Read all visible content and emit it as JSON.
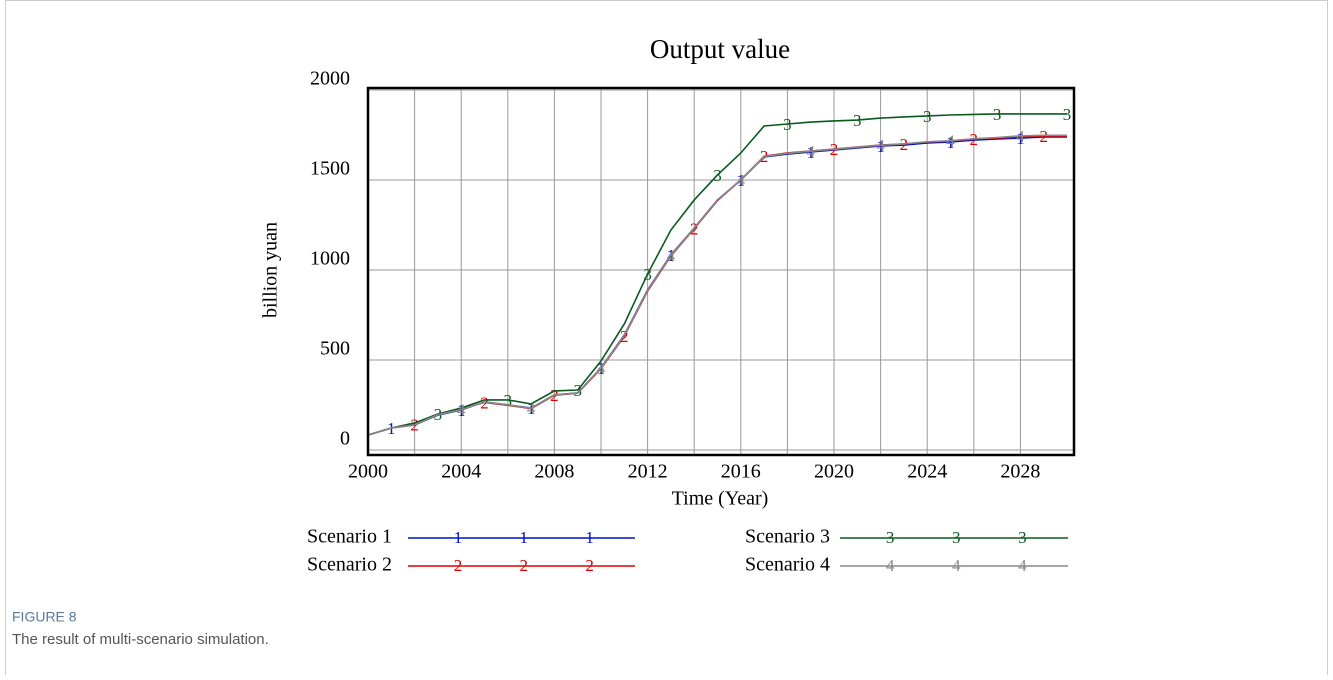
{
  "chart_data": {
    "type": "line",
    "title": "Output value",
    "x_label": "Time (Year)",
    "y_label": "billion yuan",
    "x": [
      2000,
      2001,
      2002,
      2003,
      2004,
      2005,
      2006,
      2007,
      2008,
      2009,
      2010,
      2011,
      2012,
      2013,
      2014,
      2015,
      2016,
      2017,
      2018,
      2019,
      2020,
      2021,
      2022,
      2023,
      2024,
      2025,
      2026,
      2027,
      2028,
      2029,
      2030
    ],
    "series": [
      {
        "name": "Scenario 1",
        "marker": "1",
        "color": "#0010c8",
        "values": [
          83,
          122,
          139,
          194,
          222,
          267,
          250,
          233,
          306,
          317,
          456,
          639,
          889,
          1083,
          1233,
          1389,
          1500,
          1628,
          1644,
          1656,
          1667,
          1678,
          1689,
          1694,
          1706,
          1711,
          1722,
          1728,
          1733,
          1739,
          1739
        ]
      },
      {
        "name": "Scenario 2",
        "marker": "2",
        "color": "#dd0000",
        "values": [
          83,
          122,
          141,
          198,
          228,
          264,
          248,
          230,
          304,
          315,
          452,
          633,
          883,
          1078,
          1230,
          1385,
          1500,
          1632,
          1650,
          1661,
          1672,
          1683,
          1694,
          1700,
          1711,
          1717,
          1728,
          1733,
          1739,
          1744,
          1744
        ]
      },
      {
        "name": "Scenario 3",
        "marker": "3",
        "color": "#0a5a1e",
        "values": [
          83,
          122,
          150,
          200,
          233,
          278,
          278,
          256,
          328,
          333,
          494,
          700,
          978,
          1222,
          1389,
          1528,
          1650,
          1800,
          1811,
          1822,
          1828,
          1833,
          1844,
          1850,
          1856,
          1861,
          1864,
          1867,
          1867,
          1867,
          1867
        ]
      },
      {
        "name": "Scenario 4",
        "marker": "4",
        "color": "#888888",
        "values": [
          83,
          122,
          140,
          196,
          224,
          266,
          250,
          232,
          306,
          316,
          455,
          637,
          887,
          1081,
          1232,
          1388,
          1500,
          1630,
          1648,
          1660,
          1671,
          1682,
          1693,
          1700,
          1712,
          1718,
          1729,
          1736,
          1745,
          1748,
          1748
        ]
      }
    ],
    "xlim": [
      2000,
      2030.3
    ],
    "xticks": [
      2000,
      2004,
      2008,
      2012,
      2016,
      2020,
      2024,
      2028
    ],
    "xgrid": [
      2002,
      2004,
      2006,
      2008,
      2010,
      2012,
      2014,
      2016,
      2018,
      2020,
      2022,
      2024,
      2026,
      2028
    ],
    "ylim": [
      -28,
      2011
    ],
    "yticks": [
      0,
      500,
      1000,
      1500,
      2000
    ],
    "grid": true,
    "legend": "bottom"
  },
  "caption": {
    "label": "FIGURE 8",
    "text": "The result of multi-scenario simulation."
  }
}
